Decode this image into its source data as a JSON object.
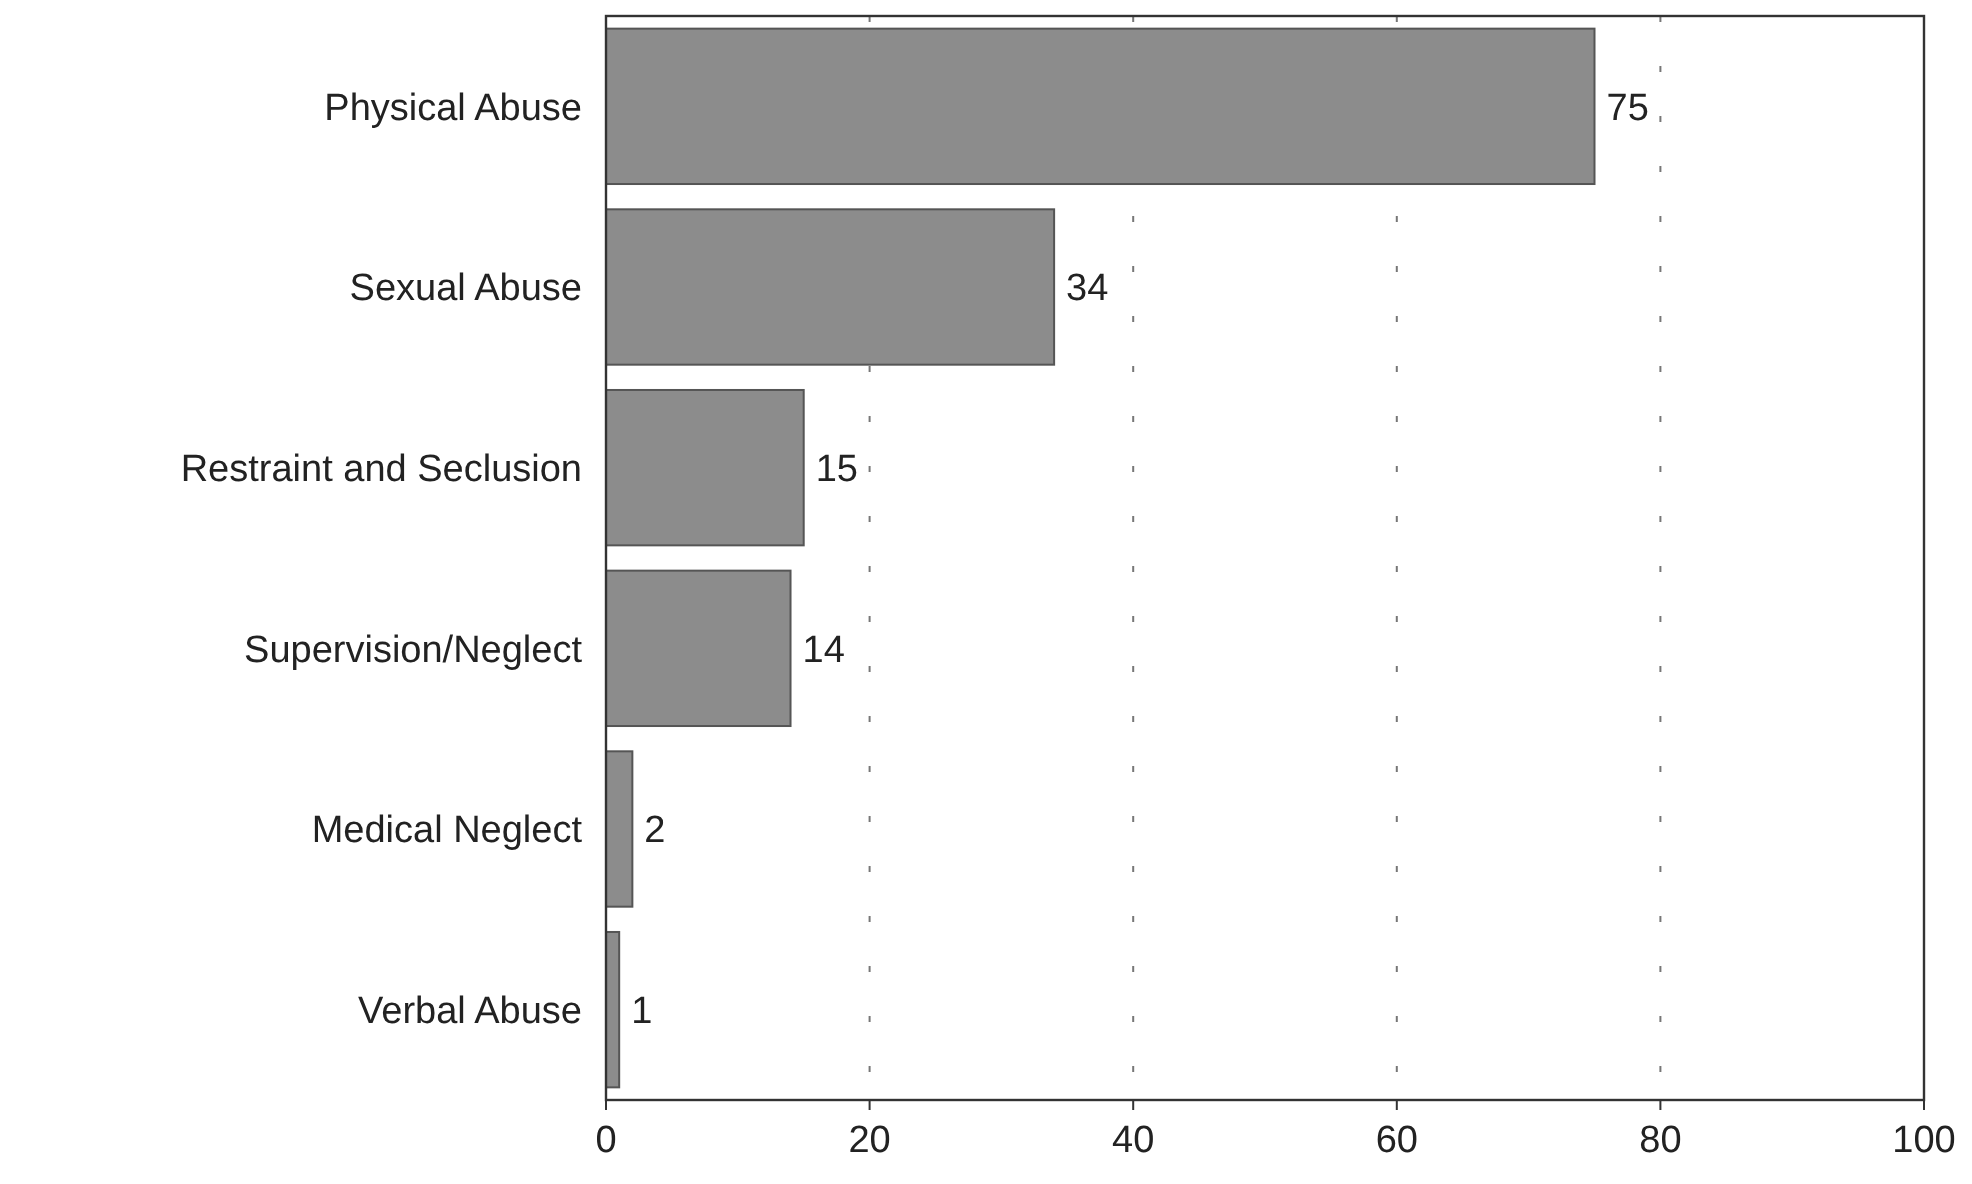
{
  "chart_data": {
    "type": "bar",
    "orientation": "horizontal",
    "categories": [
      "Physical Abuse",
      "Sexual Abuse",
      "Restraint and Seclusion",
      "Supervision/Neglect",
      "Medical Neglect",
      "Verbal Abuse"
    ],
    "values": [
      75,
      34,
      15,
      14,
      2,
      1
    ],
    "color": "#8c8c8c",
    "data_labels": true,
    "xlim": [
      0,
      100
    ],
    "xticks": [
      0,
      20,
      40,
      60,
      80,
      100
    ],
    "grid": "x"
  }
}
